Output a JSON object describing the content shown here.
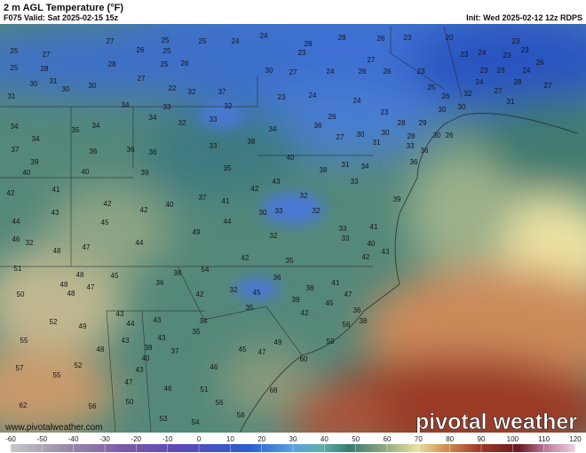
{
  "header": {
    "title": "2 m AGL Temperature (°F)",
    "valid": "F075 Valid: Sat 2025-02-15 15z",
    "init": "Init: Wed 2025-02-12 12z RDPS"
  },
  "watermark": {
    "url": "www.pivotalweather.com",
    "brand": "pivotal weather"
  },
  "colorbar": {
    "ticks": [
      -60,
      -50,
      -40,
      -30,
      -20,
      -10,
      0,
      10,
      20,
      30,
      40,
      50,
      60,
      70,
      80,
      90,
      100,
      110,
      120
    ]
  },
  "stations": [
    27,
    25,
    25,
    24,
    24,
    28,
    26,
    23,
    20,
    23,
    25,
    27,
    26,
    25,
    28,
    23,
    23,
    24,
    28,
    28,
    25,
    26,
    27,
    23,
    23,
    26,
    25,
    30,
    27,
    24,
    26,
    26,
    23,
    23,
    23,
    24,
    30,
    31,
    30,
    27,
    22,
    32,
    37,
    25,
    24,
    27,
    28,
    27,
    30,
    31,
    34,
    33,
    32,
    23,
    24,
    24,
    26,
    32,
    31,
    34,
    35,
    34,
    34,
    32,
    33,
    26,
    23,
    29,
    28,
    30,
    30,
    36,
    30,
    27,
    30,
    28,
    30,
    26,
    37,
    34,
    36,
    36,
    36,
    33,
    38,
    34,
    31,
    33,
    36,
    39,
    40,
    40,
    38,
    31,
    34,
    35,
    39,
    36,
    40,
    41,
    42,
    33,
    43,
    42,
    41,
    32,
    37,
    39,
    42,
    42,
    40,
    43,
    30,
    32,
    33,
    44,
    45,
    44,
    32,
    33,
    33,
    40,
    47,
    46,
    49,
    44,
    32,
    41,
    48,
    43,
    42,
    35,
    42,
    48,
    51,
    45,
    38,
    54,
    48,
    47,
    36,
    32,
    36,
    38,
    41,
    42,
    47,
    50,
    48,
    45,
    39,
    45,
    43,
    35,
    42,
    36,
    52,
    49,
    44,
    43,
    34,
    35,
    38,
    56,
    55,
    43,
    43,
    37,
    45,
    47,
    49,
    59,
    48,
    38,
    57,
    52,
    40,
    43,
    46,
    60,
    55,
    47,
    46,
    62,
    56,
    50,
    51,
    68,
    56,
    53,
    54,
    58
  ]
}
